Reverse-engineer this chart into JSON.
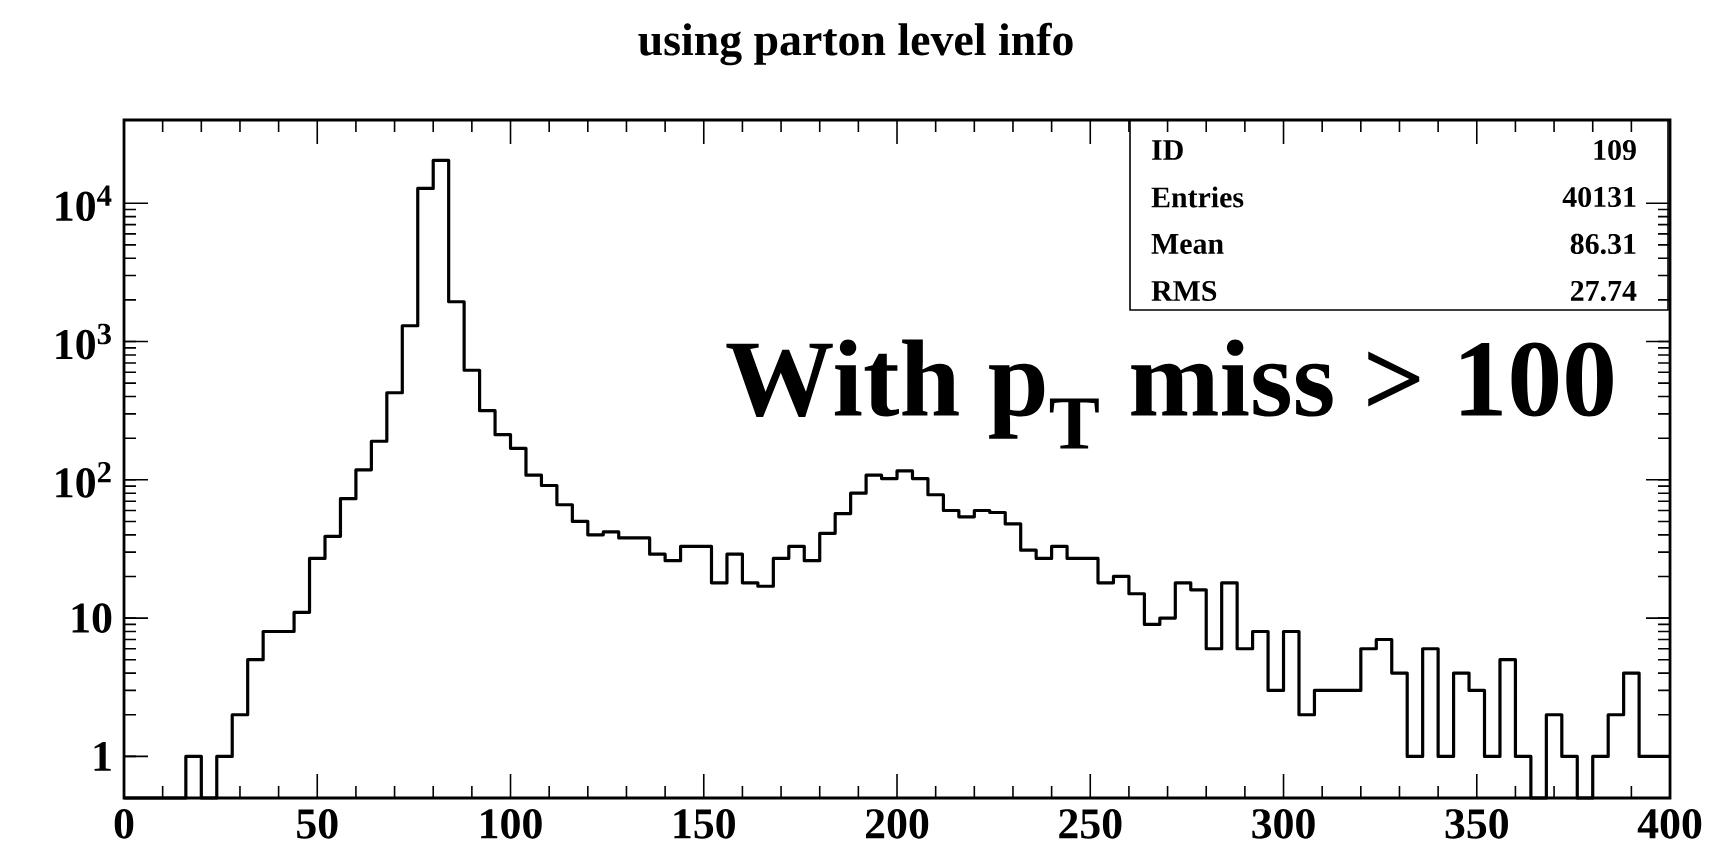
{
  "chart_data": {
    "type": "histogram",
    "title": "using parton level info",
    "bins": [
      0,
      4,
      8,
      12,
      16,
      20,
      24,
      28,
      32,
      36,
      40,
      44,
      48,
      52,
      56,
      60,
      64,
      68,
      72,
      76,
      80,
      84,
      88,
      92,
      96,
      100,
      104,
      108,
      112,
      116,
      120,
      124,
      128,
      132,
      136,
      140,
      144,
      148,
      152,
      156,
      160,
      164,
      168,
      172,
      176,
      180,
      184,
      188,
      192,
      196,
      200,
      204,
      208,
      212,
      216,
      220,
      224,
      228,
      232,
      236,
      240,
      244,
      248,
      252,
      256,
      260,
      264,
      268,
      272,
      276,
      280,
      284,
      288,
      292,
      296,
      300,
      304,
      308,
      312,
      316,
      320,
      324,
      328,
      332,
      336,
      340,
      344,
      348,
      352,
      356,
      360,
      364,
      368,
      372,
      376,
      380,
      384,
      388,
      392,
      396,
      400
    ],
    "values": [
      null,
      null,
      null,
      null,
      1,
      null,
      1,
      2,
      5,
      8,
      8,
      11,
      27,
      39,
      73,
      118,
      190,
      426,
      1300,
      12800,
      20400,
      1940,
      620,
      316,
      212,
      169,
      108,
      91,
      66,
      50,
      40,
      42,
      38,
      38,
      29,
      26,
      33,
      33,
      18,
      29,
      18,
      17,
      27,
      33,
      26,
      41,
      57,
      80,
      108,
      102,
      116,
      102,
      78,
      60,
      54,
      60,
      58,
      48,
      31,
      27,
      33,
      27,
      27,
      18,
      20,
      15,
      9,
      10,
      18,
      16,
      6,
      18,
      6,
      8,
      3,
      8,
      2,
      3,
      3,
      3,
      6,
      7,
      4,
      1,
      6,
      1,
      4,
      3,
      1,
      5,
      1,
      null,
      2,
      1,
      null,
      1,
      2,
      4,
      1,
      1
    ],
    "color": "#000000",
    "xlim": [
      0,
      400
    ],
    "ylim": [
      0.5,
      40000
    ],
    "log": true,
    "xticks": [
      0,
      50,
      100,
      150,
      200,
      250,
      300,
      350,
      400
    ],
    "yticks": [
      1,
      10,
      {
        "value": 100,
        "label": "10$^{2}$"
      },
      {
        "value": 1000,
        "label": "10$^{3}$"
      },
      {
        "value": 10000,
        "label": "10$^{4}$"
      }
    ],
    "annotations": [
      "ID",
      "109",
      "Entries",
      "40131",
      "Mean",
      "86.31",
      "RMS",
      "27.74",
      "With p$_{T}$ miss > 100"
    ]
  }
}
